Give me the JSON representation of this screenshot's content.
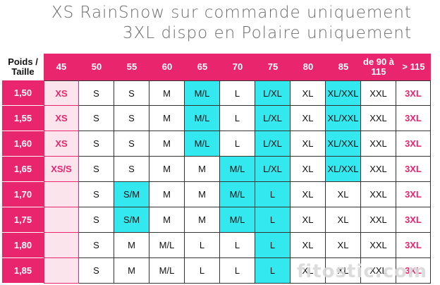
{
  "header": {
    "line1": "XS RainSnow sur commande uniquement",
    "line2": "3XL dispo en Polaire uniquement"
  },
  "table": {
    "corner": "Poids / Taille",
    "columns": [
      "45",
      "50",
      "55",
      "60",
      "65",
      "70",
      "75",
      "80",
      "85",
      "de 90 à 115",
      "> 115"
    ],
    "rows": [
      {
        "label": "1,50",
        "cells": [
          "XS",
          "S",
          "S",
          "M",
          "M/L",
          "L",
          "L/XL",
          "XL",
          "XL/XXL",
          "XXL",
          "3XL"
        ]
      },
      {
        "label": "1,55",
        "cells": [
          "XS",
          "S",
          "S",
          "M",
          "M/L",
          "L",
          "L/XL",
          "XL",
          "XL/XXL",
          "XXL",
          "3XL"
        ]
      },
      {
        "label": "1,60",
        "cells": [
          "XS",
          "S",
          "S",
          "M",
          "M/L",
          "L",
          "L/XL",
          "XL",
          "XL/XXL",
          "XXL",
          "3XL"
        ]
      },
      {
        "label": "1,65",
        "cells": [
          "XS/S",
          "S",
          "S",
          "M",
          "M",
          "M/L",
          "L/XL",
          "XL",
          "XL/XXL",
          "XXL",
          "3XL"
        ]
      },
      {
        "label": "1,70",
        "cells": [
          "",
          "S",
          "S/M",
          "M",
          "M",
          "M/L",
          "L",
          "XL",
          "XL",
          "XXL",
          "3XL"
        ]
      },
      {
        "label": "1,75",
        "cells": [
          "",
          "S",
          "S/M",
          "M",
          "M",
          "M/L",
          "L",
          "XL",
          "XL",
          "XXL",
          "3XL"
        ]
      },
      {
        "label": "1,80",
        "cells": [
          "",
          "S",
          "M",
          "M/L",
          "L",
          "L",
          "L",
          "XL",
          "XL",
          "XXL",
          "3XL"
        ]
      },
      {
        "label": "1,85",
        "cells": [
          "",
          "S",
          "M",
          "M/L",
          "L",
          "L",
          "L",
          "XL",
          "XL",
          "XXL",
          "3XL"
        ]
      }
    ],
    "highlight": [
      [
        "",
        "",
        "",
        "",
        "cyan",
        "",
        "cyan",
        "",
        "cyan",
        "",
        ""
      ],
      [
        "",
        "",
        "",
        "",
        "cyan",
        "",
        "cyan",
        "",
        "cyan",
        "",
        ""
      ],
      [
        "",
        "",
        "",
        "",
        "cyan",
        "",
        "cyan",
        "",
        "cyan",
        "",
        ""
      ],
      [
        "",
        "",
        "",
        "",
        "",
        "cyan",
        "cyan",
        "",
        "cyan",
        "",
        ""
      ],
      [
        "",
        "",
        "cyan",
        "",
        "",
        "cyan",
        "cyan",
        "",
        "",
        "",
        ""
      ],
      [
        "",
        "",
        "cyan",
        "",
        "",
        "cyan",
        "cyan",
        "",
        "",
        "",
        ""
      ],
      [
        "",
        "",
        "",
        "",
        "",
        "",
        "cyan",
        "",
        "",
        "",
        ""
      ],
      [
        "",
        "",
        "",
        "",
        "",
        "",
        "cyan",
        "",
        "",
        "",
        ""
      ]
    ],
    "colors": {
      "pink": "#e8256d",
      "pink_light": "#fbe4ec",
      "cyan": "#33e8ee"
    }
  },
  "watermark": "fitostic.com"
}
